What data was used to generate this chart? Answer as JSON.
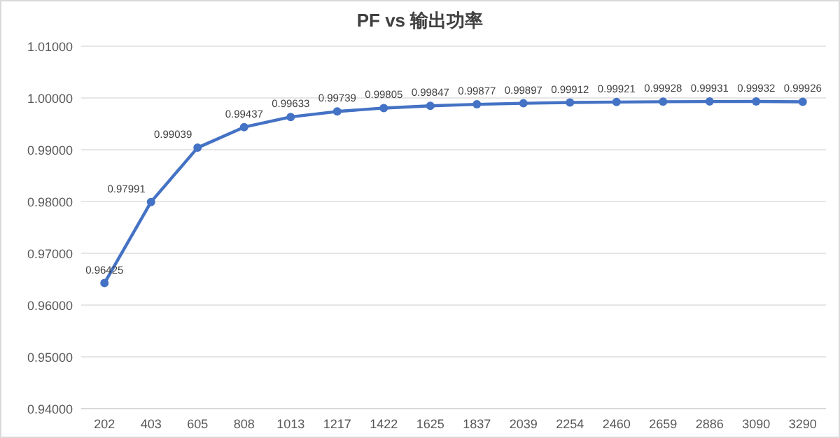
{
  "chart_data": {
    "type": "line",
    "title": "PF vs 输出功率",
    "categories": [
      "202",
      "403",
      "605",
      "808",
      "1013",
      "1217",
      "1422",
      "1625",
      "1837",
      "2039",
      "2254",
      "2460",
      "2659",
      "2886",
      "3090",
      "3290"
    ],
    "series": [
      {
        "color": "#4472c4",
        "values": [
          0.96425,
          0.97991,
          0.99039,
          0.99437,
          0.99633,
          0.99739,
          0.99805,
          0.99847,
          0.99877,
          0.99897,
          0.99912,
          0.99921,
          0.99928,
          0.99931,
          0.99932,
          0.99926
        ]
      }
    ],
    "ylim": [
      0.94,
      1.01
    ],
    "yticks": [
      {
        "value": 0.94,
        "label": "0.94000"
      },
      {
        "value": 0.95,
        "label": "0.95000"
      },
      {
        "value": 0.96,
        "label": "0.96000"
      },
      {
        "value": 0.97,
        "label": "0.97000"
      },
      {
        "value": 0.98,
        "label": "0.98000"
      },
      {
        "value": 0.99,
        "label": "0.99000"
      },
      {
        "value": 1.0,
        "label": "1.00000"
      },
      {
        "value": 1.01,
        "label": "1.01000"
      }
    ],
    "grid": "y",
    "marker": "circle",
    "line_style": "solid",
    "data_labels": true
  }
}
